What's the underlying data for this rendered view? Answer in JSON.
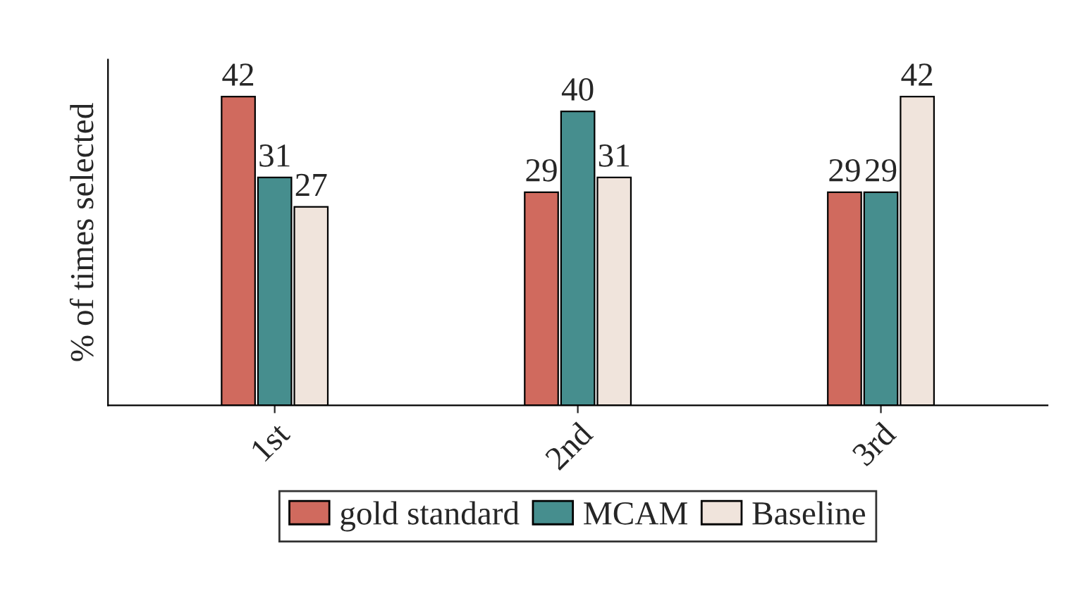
{
  "chart_data": {
    "type": "bar",
    "ylabel": "% of times selected",
    "categories": [
      "1st",
      "2nd",
      "3rd"
    ],
    "series": [
      {
        "name": "gold standard",
        "color": "#d06a5e",
        "values": [
          42,
          29,
          29
        ]
      },
      {
        "name": "MCAM",
        "color": "#468e8e",
        "values": [
          31,
          40,
          29
        ]
      },
      {
        "name": "Baseline",
        "color": "#f0e4dc",
        "values": [
          27,
          31,
          42
        ]
      }
    ],
    "data_labels": true,
    "legend": "bottom",
    "tick_labels": "x",
    "grid": false
  }
}
